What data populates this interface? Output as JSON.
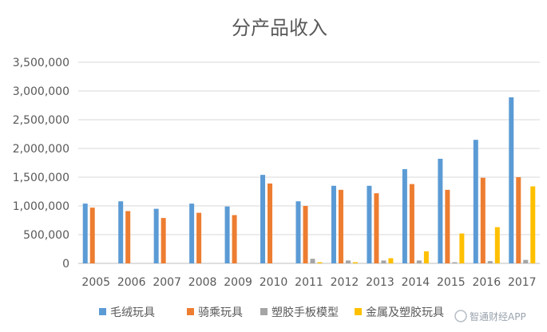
{
  "chart_data": {
    "type": "bar",
    "title": "分产品收入",
    "categories": [
      "2005",
      "2006",
      "2007",
      "2008",
      "2009",
      "2010",
      "2011",
      "2012",
      "2013",
      "2014",
      "2015",
      "2016",
      "2017"
    ],
    "ylim": [
      0,
      3500000
    ],
    "yticks": [
      "0",
      "500,000",
      "1,000,000",
      "1,500,000",
      "2,000,000",
      "2,500,000",
      "3,000,000",
      "3,500,000"
    ],
    "grid": true,
    "legend_position": "bottom",
    "series": [
      {
        "name": "毛绒玩具",
        "color": "#5b9bd5",
        "values": [
          1040000,
          1080000,
          950000,
          1040000,
          990000,
          1540000,
          1080000,
          1350000,
          1350000,
          1640000,
          1820000,
          2150000,
          2890000
        ]
      },
      {
        "name": "骑乘玩具",
        "color": "#ed7d31",
        "values": [
          970000,
          910000,
          790000,
          880000,
          840000,
          1390000,
          1000000,
          1280000,
          1220000,
          1380000,
          1280000,
          1490000,
          1500000
        ]
      },
      {
        "name": "塑胶手板模型",
        "color": "#a5a5a5",
        "values": [
          0,
          0,
          0,
          0,
          0,
          0,
          80000,
          50000,
          50000,
          50000,
          20000,
          40000,
          60000
        ]
      },
      {
        "name": "金属及塑胶玩具",
        "color": "#ffc000",
        "values": [
          0,
          0,
          0,
          0,
          0,
          0,
          20000,
          20000,
          90000,
          210000,
          520000,
          630000,
          1340000
        ]
      }
    ]
  },
  "watermark": "智通财经APP"
}
